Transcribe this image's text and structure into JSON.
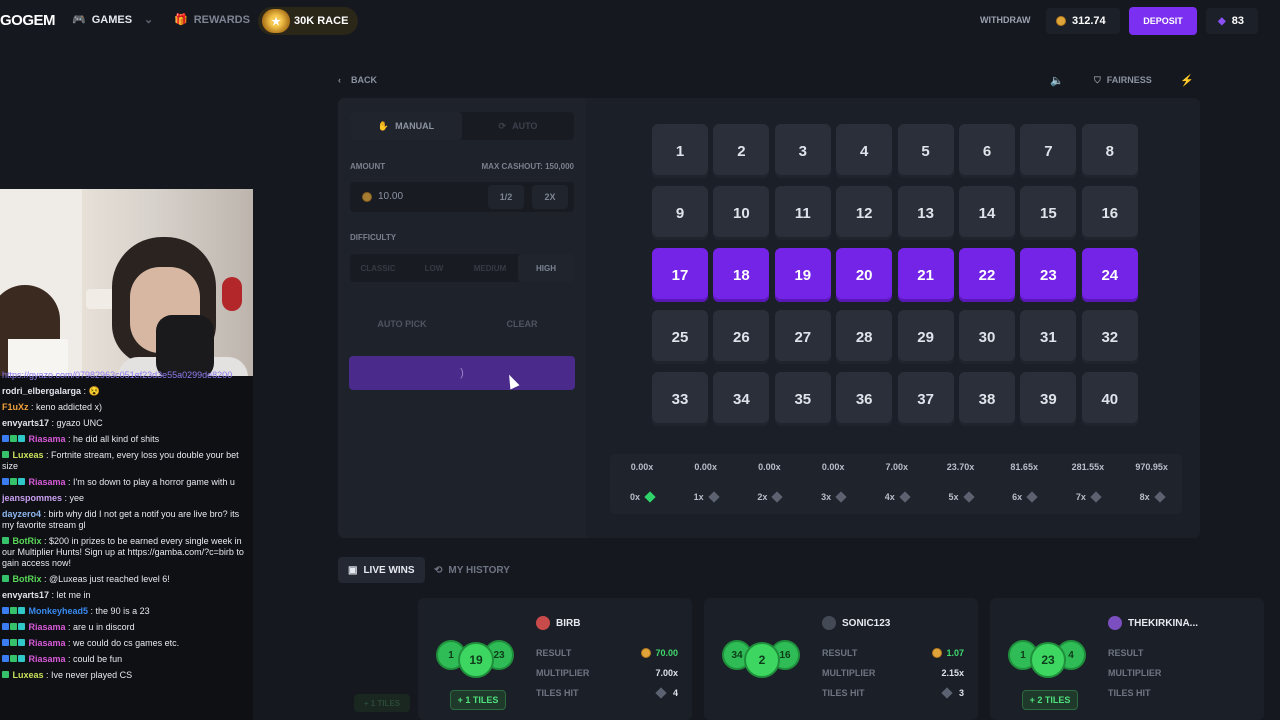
{
  "nav": {
    "logo": "GOGEM",
    "games": "GAMES",
    "rewards": "REWARDS",
    "race": "30K RACE",
    "withdraw": "WITHDRAW",
    "balance": "312.74",
    "deposit": "DEPOSIT",
    "gems": "83"
  },
  "topbar": {
    "back": "BACK",
    "fairness": "FAIRNESS"
  },
  "panel": {
    "mode_manual": "MANUAL",
    "mode_auto": "AUTO",
    "amount_label": "AMOUNT",
    "max_cashout": "MAX CASHOUT: 150,000",
    "amount_value": "10.00",
    "half": "1/2",
    "double": "2X",
    "difficulty_label": "DIFFICULTY",
    "difficulties": [
      "CLASSIC",
      "LOW",
      "MEDIUM",
      "HIGH"
    ],
    "auto_pick": "AUTO PICK",
    "clear": "CLEAR",
    "bet_spinner": ")"
  },
  "grid": {
    "tiles": [
      "1",
      "2",
      "3",
      "4",
      "5",
      "6",
      "7",
      "8",
      "9",
      "10",
      "11",
      "12",
      "13",
      "14",
      "15",
      "16",
      "17",
      "18",
      "19",
      "20",
      "21",
      "22",
      "23",
      "24",
      "25",
      "26",
      "27",
      "28",
      "29",
      "30",
      "31",
      "32",
      "33",
      "34",
      "35",
      "36",
      "37",
      "38",
      "39",
      "40"
    ],
    "selected": [
      "17",
      "18",
      "19",
      "20",
      "21",
      "22",
      "23",
      "24"
    ]
  },
  "payout": {
    "multipliers": [
      "0.00x",
      "0.00x",
      "0.00x",
      "0.00x",
      "7.00x",
      "23.70x",
      "81.65x",
      "281.55x",
      "970.95x"
    ],
    "hits": [
      "0x",
      "1x",
      "2x",
      "3x",
      "4x",
      "5x",
      "6x",
      "7x",
      "8x"
    ]
  },
  "tabs": {
    "live_wins": "LIVE WINS",
    "my_history": "MY HISTORY"
  },
  "cards": [
    {
      "user": "BIRB",
      "result_label": "RESULT",
      "result": "70.00",
      "mult_label": "MULTIPLIER",
      "multiplier": "7.00x",
      "hit_label": "TILES HIT",
      "tiles_hit": "4",
      "balls": [
        "1",
        "19",
        "23"
      ],
      "extra": "+ 1 TILES"
    },
    {
      "user": "SONIC123",
      "result_label": "RESULT",
      "result": "1.07",
      "mult_label": "MULTIPLIER",
      "multiplier": "2.15x",
      "hit_label": "TILES HIT",
      "tiles_hit": "3",
      "balls": [
        "34",
        "2",
        "16"
      ],
      "extra": ""
    },
    {
      "user": "THEKIRKINA...",
      "result_label": "RESULT",
      "result": "",
      "mult_label": "MULTIPLIER",
      "multiplier": "",
      "hit_label": "TILES HIT",
      "tiles_hit": "",
      "balls": [
        "1",
        "23",
        "4"
      ],
      "extra": "+ 2 TILES"
    }
  ],
  "ghost_tiles": "+ 1 TILES",
  "chat": [
    {
      "user": "",
      "text": "https://gyazo.com/07982963c051ef23d3e55a0299de8200",
      "color": "#8e7cf0"
    },
    {
      "user": "rodri_elbergalarga",
      "text": " : 😵",
      "color": "#e0e3ea"
    },
    {
      "user": "F1uXz",
      "text": " : keno addicted x)",
      "color": "#f0a03a"
    },
    {
      "user": "envyarts17",
      "text": " : gyazo UNC",
      "color": "#e0e3ea"
    },
    {
      "user": "Riasama",
      "text": " : he did all kind of shits",
      "color": "#d85ad8"
    },
    {
      "user": "Luxeas",
      "text": " : Fortnite stream, every loss you double your bet size",
      "color": "#c9e05a"
    },
    {
      "user": "Riasama",
      "text": " : I'm so down to play a horror game with u",
      "color": "#d85ad8"
    },
    {
      "user": "jeanspommes",
      "text": " : yee",
      "color": "#c9a0f0"
    },
    {
      "user": "dayzero4",
      "text": " : birb why did I not get a notif you are live bro? its my favorite stream gl",
      "color": "#8fb8f0"
    },
    {
      "user": "BotRix",
      "text": " : $200 in prizes to be earned every single week in our Multiplier Hunts! Sign up at https://gamba.com/?c=birb to gain access now!",
      "color": "#5ad85a"
    },
    {
      "user": "BotRix",
      "text": " : @Luxeas just reached level 6!",
      "color": "#5ad85a"
    },
    {
      "user": "envyarts17",
      "text": " : let me in",
      "color": "#e0e3ea"
    },
    {
      "user": "Monkeyhead5",
      "text": " : the 90 is a 23",
      "color": "#3a8af0"
    },
    {
      "user": "Riasama",
      "text": " : are u in discord",
      "color": "#d85ad8"
    },
    {
      "user": "Riasama",
      "text": " : we could do cs games etc.",
      "color": "#d85ad8"
    },
    {
      "user": "Riasama",
      "text": " : could be fun",
      "color": "#d85ad8"
    },
    {
      "user": "Luxeas",
      "text": " : Ive never played CS",
      "color": "#c9e05a"
    }
  ]
}
